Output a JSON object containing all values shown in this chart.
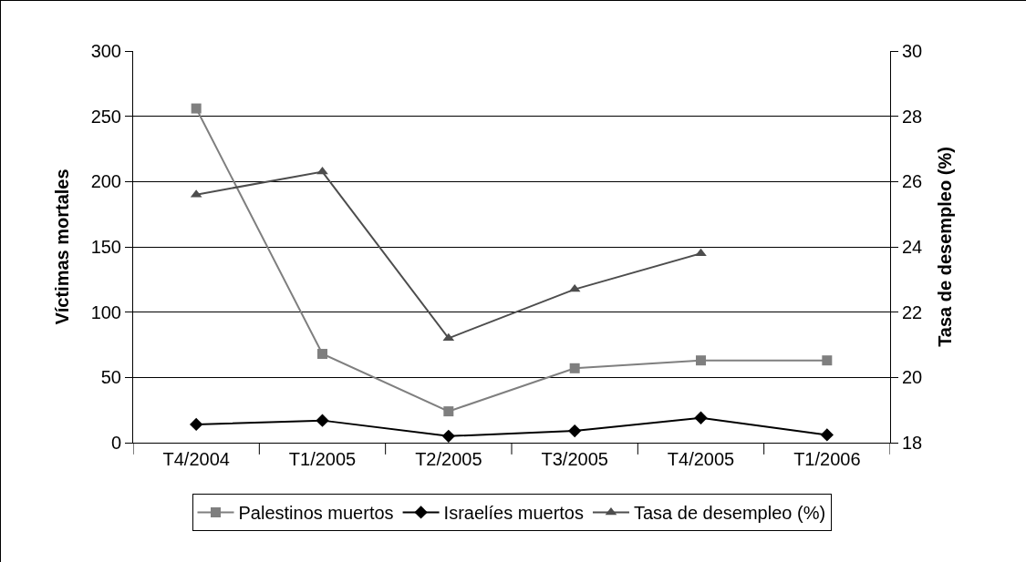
{
  "chart_data": {
    "type": "line",
    "ylabel": "Víctimas mortales",
    "y2label": "Tasa de desempleo (%)",
    "categories": [
      "T4/2004",
      "T1/2005",
      "T2/2005",
      "T3/2005",
      "T4/2005",
      "T1/2006"
    ],
    "series": [
      {
        "name": "Palestinos muertos",
        "color": "#7f7f7f",
        "marker": "square",
        "values": [
          256,
          68,
          24,
          57,
          63,
          63
        ]
      },
      {
        "name": "Israelíes muertos",
        "color": "#000000",
        "marker": "diamond",
        "values": [
          14,
          17,
          5,
          9,
          19,
          6
        ]
      },
      {
        "name": "Tasa de desempleo (%)",
        "color": "#4d4d4d",
        "marker": "triangle",
        "axis": "y2",
        "values": [
          25.6,
          26.3,
          21.2,
          22.7,
          23.8,
          null
        ]
      }
    ],
    "ylim": [
      0,
      300
    ],
    "yticks": [
      0,
      50,
      100,
      150,
      200,
      250,
      300
    ],
    "y2lim": [
      18,
      30
    ],
    "y2ticks": [
      18,
      20,
      22,
      24,
      26,
      28,
      30
    ],
    "grid": "y",
    "legend": "bottom",
    "line_style": "solid"
  }
}
